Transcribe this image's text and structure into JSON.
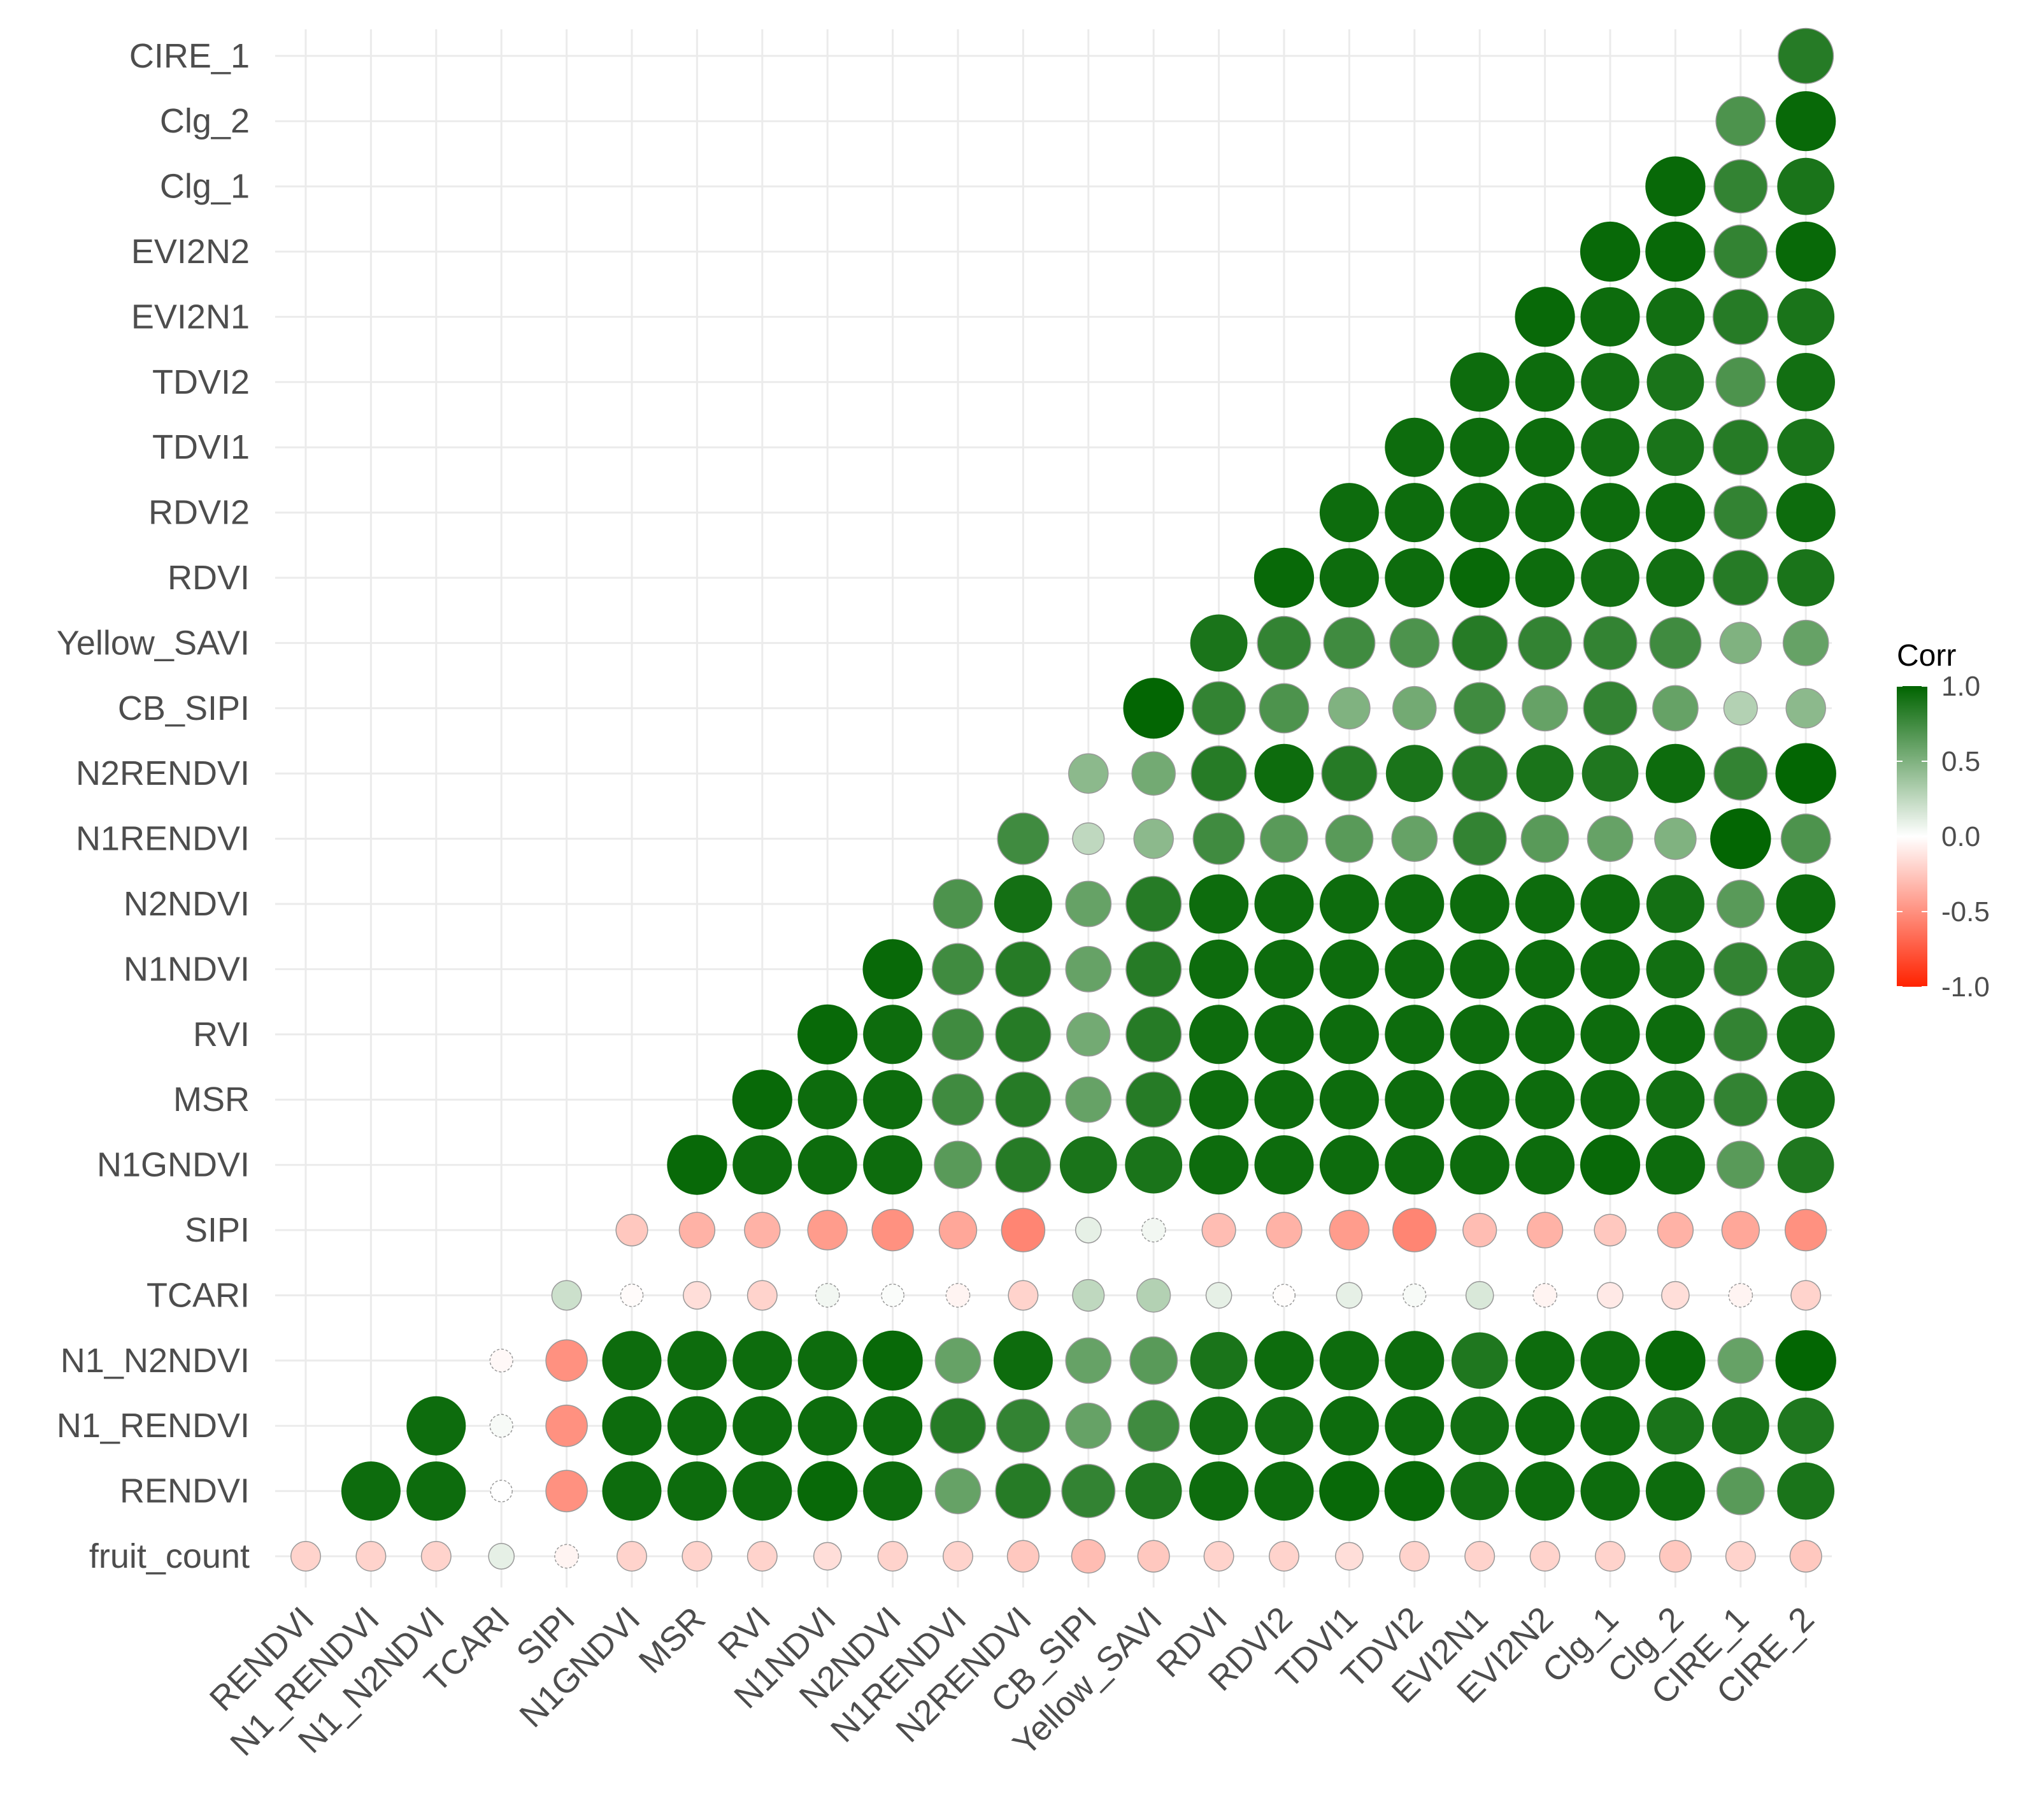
{
  "chart_data": {
    "type": "heatmap",
    "style": "circle-correlogram-lower-triangle",
    "x_labels": [
      "RENDVI",
      "N1_RENDVI",
      "N1_N2NDVI",
      "TCARI",
      "SIPI",
      "N1GNDVI",
      "MSR",
      "RVI",
      "N1NDVI",
      "N2NDVI",
      "N1RENDVI",
      "N2RENDVI",
      "CB_SIPI",
      "Yellow_SAVI",
      "RDVI",
      "RDVI2",
      "TDVI1",
      "TDVI2",
      "EVI2N1",
      "EVI2N2",
      "Clg_1",
      "Clg_2",
      "CIRE_1",
      "CIRE_2"
    ],
    "y_labels": [
      "fruit_count",
      "RENDVI",
      "N1_RENDVI",
      "N1_N2NDVI",
      "TCARI",
      "SIPI",
      "N1GNDVI",
      "MSR",
      "RVI",
      "N1NDVI",
      "N2NDVI",
      "N1RENDVI",
      "N2RENDVI",
      "CB_SIPI",
      "Yellow_SAVI",
      "RDVI",
      "RDVI2",
      "TDVI1",
      "TDVI2",
      "EVI2N1",
      "EVI2N2",
      "Clg_1",
      "Clg_2",
      "CIRE_1"
    ],
    "matrix": [
      [
        -0.2,
        -0.2,
        -0.2,
        0.1,
        -0.05,
        -0.2,
        -0.2,
        -0.2,
        -0.15,
        -0.2,
        -0.2,
        -0.25,
        -0.3,
        -0.25,
        -0.2,
        -0.2,
        -0.15,
        -0.2,
        -0.2,
        -0.2,
        -0.2,
        -0.25,
        -0.2,
        -0.25
      ],
      [
        0.95,
        0.95,
        0.0,
        -0.5,
        0.95,
        0.95,
        0.95,
        0.97,
        0.95,
        0.6,
        0.85,
        0.8,
        0.88,
        0.95,
        0.95,
        0.97,
        0.97,
        0.93,
        0.95,
        0.95,
        0.95,
        0.65,
        0.9
      ],
      [
        0.95,
        0.03,
        -0.5,
        0.95,
        0.95,
        0.95,
        0.95,
        0.95,
        0.85,
        0.8,
        0.6,
        0.75,
        0.93,
        0.93,
        0.95,
        0.95,
        0.93,
        0.95,
        0.95,
        0.9,
        0.9,
        0.88
      ],
      [
        -0.03,
        -0.5,
        0.95,
        0.95,
        0.95,
        0.95,
        0.97,
        0.6,
        0.95,
        0.6,
        0.65,
        0.9,
        0.95,
        0.95,
        0.95,
        0.88,
        0.95,
        0.95,
        0.97,
        0.6,
        0.99
      ],
      [
        0.2,
        -0.02,
        -0.15,
        -0.2,
        0.05,
        0.02,
        -0.05,
        -0.2,
        0.25,
        0.3,
        0.1,
        -0.01,
        0.1,
        0.03,
        0.15,
        -0.05,
        -0.1,
        -0.15,
        -0.05,
        -0.2
      ],
      [
        -0.25,
        -0.35,
        -0.35,
        -0.45,
        -0.5,
        -0.4,
        -0.55,
        0.1,
        0.05,
        -0.3,
        -0.35,
        -0.45,
        -0.55,
        -0.3,
        -0.35,
        -0.25,
        -0.35,
        -0.4,
        -0.5
      ],
      [
        0.97,
        0.95,
        0.95,
        0.95,
        0.65,
        0.85,
        0.9,
        0.9,
        0.95,
        0.95,
        0.95,
        0.95,
        0.95,
        0.95,
        0.97,
        0.95,
        0.65,
        0.88
      ],
      [
        0.97,
        0.95,
        0.95,
        0.75,
        0.85,
        0.6,
        0.85,
        0.95,
        0.95,
        0.95,
        0.95,
        0.95,
        0.95,
        0.95,
        0.93,
        0.8,
        0.92
      ],
      [
        0.97,
        0.95,
        0.75,
        0.85,
        0.55,
        0.85,
        0.95,
        0.95,
        0.95,
        0.95,
        0.95,
        0.95,
        0.95,
        0.95,
        0.8,
        0.92
      ],
      [
        0.97,
        0.75,
        0.85,
        0.6,
        0.85,
        0.95,
        0.95,
        0.95,
        0.95,
        0.95,
        0.95,
        0.95,
        0.93,
        0.8,
        0.9
      ],
      [
        0.7,
        0.92,
        0.6,
        0.85,
        0.95,
        0.95,
        0.95,
        0.95,
        0.95,
        0.95,
        0.95,
        0.92,
        0.65,
        0.95
      ],
      [
        0.75,
        0.25,
        0.45,
        0.75,
        0.65,
        0.65,
        0.6,
        0.8,
        0.65,
        0.6,
        0.5,
        0.99,
        0.7
      ],
      [
        0.45,
        0.55,
        0.85,
        0.95,
        0.85,
        0.9,
        0.85,
        0.9,
        0.88,
        0.95,
        0.8,
        0.99
      ],
      [
        0.99,
        0.8,
        0.7,
        0.5,
        0.55,
        0.75,
        0.6,
        0.8,
        0.6,
        0.3,
        0.45
      ],
      [
        0.9,
        0.8,
        0.75,
        0.7,
        0.85,
        0.8,
        0.8,
        0.75,
        0.5,
        0.6
      ],
      [
        0.97,
        0.95,
        0.95,
        0.97,
        0.95,
        0.93,
        0.93,
        0.85,
        0.9
      ],
      [
        0.95,
        0.95,
        0.95,
        0.95,
        0.95,
        0.95,
        0.8,
        0.95
      ],
      [
        0.95,
        0.95,
        0.95,
        0.93,
        0.9,
        0.85,
        0.9
      ],
      [
        0.95,
        0.95,
        0.93,
        0.9,
        0.7,
        0.93
      ],
      [
        0.97,
        0.95,
        0.93,
        0.85,
        0.9
      ],
      [
        0.97,
        0.97,
        0.8,
        0.97
      ],
      [
        0.97,
        0.8,
        0.9
      ],
      [
        0.7,
        0.97
      ],
      [
        0.85
      ]
    ],
    "legend": {
      "title": "Corr",
      "ticks": [
        {
          "value": 1.0,
          "label": "1.0"
        },
        {
          "value": 0.5,
          "label": "0.5"
        },
        {
          "value": 0.0,
          "label": "0.0"
        },
        {
          "value": -0.5,
          "label": "-0.5"
        },
        {
          "value": -1.0,
          "label": "-1.0"
        }
      ],
      "range": [
        -1.0,
        1.0
      ],
      "placement": "right"
    },
    "colors": {
      "high": "#006400",
      "mid": "#ffffff",
      "low": "#ff2200",
      "grid": "#ebebeb",
      "text": "#4d4d4d",
      "legend_title": "#000000",
      "circle_outline": "#999999"
    }
  }
}
